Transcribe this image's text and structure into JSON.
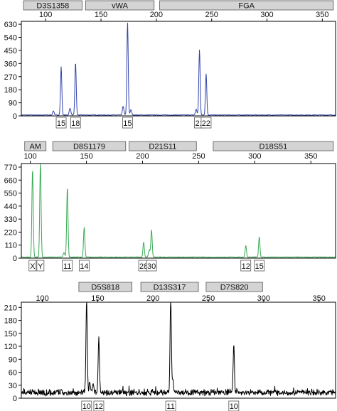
{
  "chart_data": [
    {
      "type": "line",
      "x_ticks": [
        "100",
        "150",
        "200",
        "250",
        "300",
        "350"
      ],
      "x_tick_values": [
        100,
        150,
        200,
        250,
        300,
        350
      ],
      "xlim": [
        78,
        362
      ],
      "y_ticks": [
        "630",
        "540",
        "450",
        "360",
        "270",
        "180",
        "90",
        "0"
      ],
      "y_tick_values": [
        630,
        540,
        450,
        360,
        270,
        180,
        90,
        0
      ],
      "ylim": [
        0,
        650
      ],
      "loci": [
        {
          "name": "D3S1358",
          "start": 80,
          "end": 133
        },
        {
          "name": "vWA",
          "start": 136,
          "end": 198
        },
        {
          "name": "FGA",
          "start": 203,
          "end": 360
        }
      ],
      "allele_labels": [
        {
          "label": "15",
          "x": 114
        },
        {
          "label": "18",
          "x": 127
        },
        {
          "label": "15",
          "x": 174
        },
        {
          "label": "21",
          "x": 239
        },
        {
          "label": "22",
          "x": 245
        }
      ],
      "series": [
        {
          "color": "#3344aa",
          "peaks": [
            {
              "x": 107,
              "y": 28,
              "w": 0.7
            },
            {
              "x": 114,
              "y": 330,
              "w": 0.6
            },
            {
              "x": 122,
              "y": 48,
              "w": 0.7
            },
            {
              "x": 127,
              "y": 362,
              "w": 0.6
            },
            {
              "x": 170,
              "y": 58,
              "w": 0.7
            },
            {
              "x": 174,
              "y": 635,
              "w": 0.6
            },
            {
              "x": 177,
              "y": 35,
              "w": 0.7
            },
            {
              "x": 236,
              "y": 40,
              "w": 0.7
            },
            {
              "x": 239,
              "y": 448,
              "w": 0.6
            },
            {
              "x": 245,
              "y": 285,
              "w": 0.6
            }
          ],
          "baseline": 6
        }
      ]
    },
    {
      "type": "line",
      "x_ticks": [
        "100",
        "150",
        "200",
        "250",
        "300",
        "350"
      ],
      "x_tick_values": [
        100,
        150,
        200,
        250,
        300,
        350
      ],
      "xlim": [
        92,
        372
      ],
      "y_ticks": [
        "770",
        "660",
        "550",
        "440",
        "330",
        "220",
        "110",
        "0"
      ],
      "y_tick_values": [
        770,
        660,
        550,
        440,
        330,
        220,
        110,
        0
      ],
      "ylim": [
        0,
        800
      ],
      "loci": [
        {
          "name": "AM",
          "start": 95,
          "end": 114
        },
        {
          "name": "D8S1179",
          "start": 120,
          "end": 185
        },
        {
          "name": "D21S11",
          "start": 188,
          "end": 248
        },
        {
          "name": "D18S51",
          "start": 263,
          "end": 370
        }
      ],
      "allele_labels": [
        {
          "label": "X",
          "x": 102
        },
        {
          "label": "Y",
          "x": 109
        },
        {
          "label": "11",
          "x": 133
        },
        {
          "label": "14",
          "x": 148
        },
        {
          "label": "28",
          "x": 201
        },
        {
          "label": "30",
          "x": 208
        },
        {
          "label": "12",
          "x": 292
        },
        {
          "label": "15",
          "x": 304
        }
      ],
      "series": [
        {
          "color": "#3aaa55",
          "peaks": [
            {
              "x": 102,
              "y": 745,
              "w": 0.6
            },
            {
              "x": 109,
              "y": 800,
              "w": 0.6
            },
            {
              "x": 130,
              "y": 40,
              "w": 0.7
            },
            {
              "x": 133,
              "y": 590,
              "w": 0.6
            },
            {
              "x": 148,
              "y": 250,
              "w": 0.6
            },
            {
              "x": 201,
              "y": 130,
              "w": 0.6
            },
            {
              "x": 206,
              "y": 60,
              "w": 0.7
            },
            {
              "x": 208,
              "y": 230,
              "w": 0.6
            },
            {
              "x": 292,
              "y": 100,
              "w": 0.6
            },
            {
              "x": 304,
              "y": 175,
              "w": 0.6
            }
          ],
          "baseline": 8
        }
      ]
    },
    {
      "type": "line",
      "x_ticks": [
        "100",
        "150",
        "200",
        "250",
        "300",
        "350"
      ],
      "x_tick_values": [
        100,
        150,
        200,
        250,
        300,
        350
      ],
      "xlim": [
        81,
        365
      ],
      "y_ticks": [
        "210",
        "180",
        "150",
        "120",
        "90",
        "60",
        "30",
        "0"
      ],
      "y_tick_values": [
        210,
        180,
        150,
        120,
        90,
        60,
        30,
        0
      ],
      "ylim": [
        0,
        222
      ],
      "loci": [
        {
          "name": "D5S818",
          "start": 133,
          "end": 181
        },
        {
          "name": "D13S317",
          "start": 189,
          "end": 241
        },
        {
          "name": "D7S820",
          "start": 248,
          "end": 299
        }
      ],
      "allele_labels": [
        {
          "label": "10",
          "x": 140
        },
        {
          "label": "12",
          "x": 151
        },
        {
          "label": "11",
          "x": 216
        },
        {
          "label": "10",
          "x": 273
        }
      ],
      "series": [
        {
          "color": "#000000",
          "peaks": [
            {
              "x": 140,
              "y": 210,
              "w": 0.6
            },
            {
              "x": 143,
              "y": 22,
              "w": 0.6
            },
            {
              "x": 146,
              "y": 18,
              "w": 0.6
            },
            {
              "x": 151,
              "y": 125,
              "w": 0.6
            },
            {
              "x": 216,
              "y": 222,
              "w": 0.6
            },
            {
              "x": 218,
              "y": 30,
              "w": 0.6
            },
            {
              "x": 273,
              "y": 108,
              "w": 0.6
            }
          ],
          "baseline": 8,
          "noisy": true
        }
      ]
    }
  ]
}
